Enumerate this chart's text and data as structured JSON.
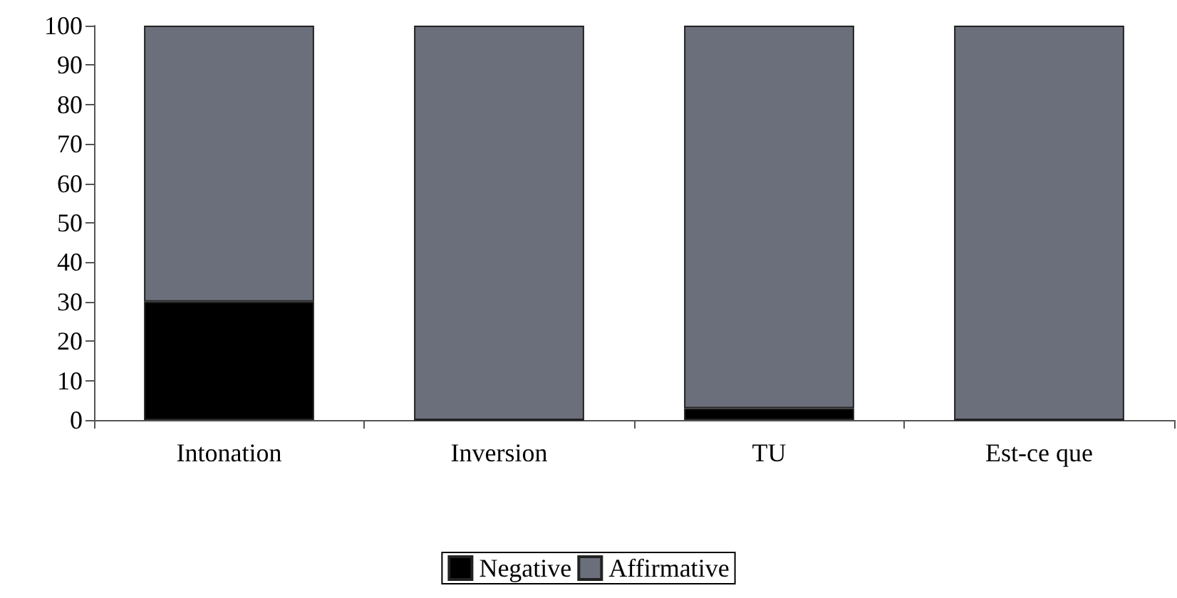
{
  "chart_data": {
    "type": "bar",
    "stacked": true,
    "categories": [
      "Intonation",
      "Inversion",
      "TU",
      "Est-ce que"
    ],
    "series": [
      {
        "name": "Negative",
        "color": "#000000",
        "values": [
          30,
          0,
          3,
          0
        ]
      },
      {
        "name": "Affirmative",
        "color": "#6b6f7b",
        "values": [
          70,
          100,
          97,
          100
        ]
      }
    ],
    "ylim": [
      0,
      100
    ],
    "yticks": [
      0,
      10,
      20,
      30,
      40,
      50,
      60,
      70,
      80,
      90,
      100
    ],
    "grid": false,
    "legend": "bottom"
  }
}
